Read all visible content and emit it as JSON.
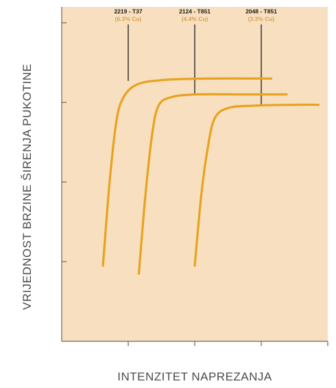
{
  "colors": {
    "plot_background": "#f7dfc0",
    "curve": "#e8a21d",
    "axis": "#666666",
    "annotation_line": "#1a1a1a",
    "annotation_sub": "#d9a24a"
  },
  "chart_data": {
    "type": "line",
    "xlabel": "INTENZITET NAPREZANJA",
    "ylabel": "VRIJEDNOST BRZINE ŠIRENJA PUKOTINE",
    "xlim": [
      0,
      4
    ],
    "ylim": [
      0,
      4.2
    ],
    "xticks": [
      1,
      2,
      3,
      4
    ],
    "yticks": [
      1,
      2,
      3,
      4
    ],
    "tick_labels_shown": false,
    "grid": false,
    "series": [
      {
        "name": "2219 - T37",
        "subtitle": "(6.3% Cu)",
        "x": [
          0.62,
          0.72,
          0.82,
          0.92,
          1.12,
          1.5,
          2.2,
          3.15
        ],
        "y": [
          0.95,
          2.0,
          2.75,
          3.05,
          3.22,
          3.28,
          3.3,
          3.3
        ]
      },
      {
        "name": "2124 - T851",
        "subtitle": "(4.4% Cu)",
        "x": [
          1.16,
          1.26,
          1.36,
          1.45,
          1.62,
          2.0,
          2.8,
          3.38
        ],
        "y": [
          0.85,
          1.85,
          2.6,
          2.95,
          3.06,
          3.1,
          3.1,
          3.1
        ]
      },
      {
        "name": "2048 - T851",
        "subtitle": "(3.3% Cu)",
        "x": [
          2.0,
          2.1,
          2.2,
          2.3,
          2.5,
          2.9,
          3.5,
          3.86
        ],
        "y": [
          0.95,
          1.85,
          2.45,
          2.8,
          2.93,
          2.96,
          2.97,
          2.97
        ]
      }
    ],
    "annotations": [
      {
        "label": "2219 - T37",
        "sub": "(6.3% Cu)",
        "x": 1.0,
        "y_from": 3.27,
        "y_to": 3.98
      },
      {
        "label": "2124 - T851",
        "sub": "(4.4% Cu)",
        "x": 2.0,
        "y_from": 3.1,
        "y_to": 3.98
      },
      {
        "label": "2048 - T851",
        "sub": "(3.3% Cu)",
        "x": 3.0,
        "y_from": 2.96,
        "y_to": 3.98
      }
    ]
  }
}
